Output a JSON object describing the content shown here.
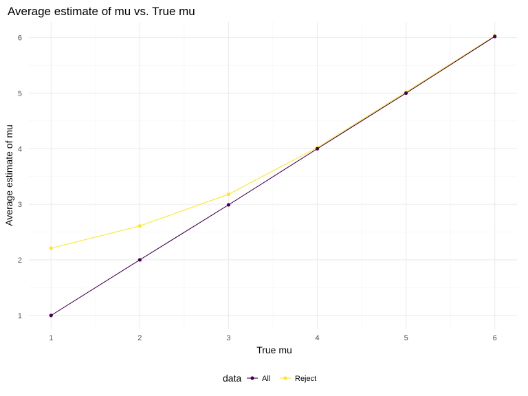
{
  "chart_data": {
    "type": "line",
    "title": "Average estimate of mu vs. True mu",
    "xlabel": "True mu",
    "ylabel": "Average estimate of mu",
    "x": [
      1,
      2,
      3,
      4,
      5,
      6
    ],
    "xlim": [
      0.75,
      6.25
    ],
    "ylim": [
      0.75,
      6.28
    ],
    "xticks": [
      1,
      2,
      3,
      4,
      5,
      6
    ],
    "yticks": [
      1,
      2,
      3,
      4,
      5,
      6
    ],
    "grid": true,
    "legend": {
      "title": "data",
      "position": "bottom"
    },
    "series": [
      {
        "name": "All",
        "color": "#440154",
        "values": [
          1.0,
          2.0,
          2.99,
          4.0,
          5.0,
          6.02
        ]
      },
      {
        "name": "Reject",
        "color": "#FDE725",
        "values": [
          2.21,
          2.61,
          3.18,
          4.02,
          5.02,
          6.03
        ]
      }
    ]
  }
}
